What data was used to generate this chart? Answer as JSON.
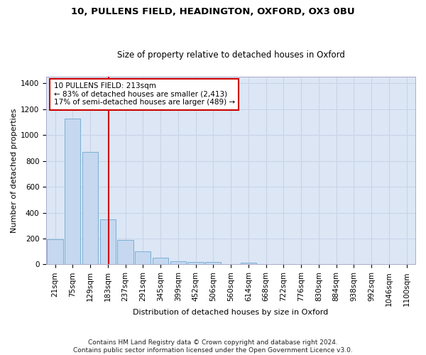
{
  "title1": "10, PULLENS FIELD, HEADINGTON, OXFORD, OX3 0BU",
  "title2": "Size of property relative to detached houses in Oxford",
  "xlabel": "Distribution of detached houses by size in Oxford",
  "ylabel": "Number of detached properties",
  "footer": "Contains HM Land Registry data © Crown copyright and database right 2024.\nContains public sector information licensed under the Open Government Licence v3.0.",
  "categories": [
    "21sqm",
    "75sqm",
    "129sqm",
    "183sqm",
    "237sqm",
    "291sqm",
    "345sqm",
    "399sqm",
    "452sqm",
    "506sqm",
    "560sqm",
    "614sqm",
    "668sqm",
    "722sqm",
    "776sqm",
    "830sqm",
    "884sqm",
    "938sqm",
    "992sqm",
    "1046sqm",
    "1100sqm"
  ],
  "values": [
    195,
    1130,
    870,
    350,
    190,
    100,
    50,
    25,
    20,
    20,
    0,
    15,
    0,
    0,
    0,
    0,
    0,
    0,
    0,
    0,
    0
  ],
  "bar_color": "#c5d8f0",
  "bar_edge_color": "#7bafd4",
  "grid_color": "#c8d4e8",
  "background_color": "#dce6f5",
  "fig_background": "#ffffff",
  "marker_color": "#cc0000",
  "annotation_text": "10 PULLENS FIELD: 213sqm\n← 83% of detached houses are smaller (2,413)\n17% of semi-detached houses are larger (489) →",
  "annotation_box_color": "#ffffff",
  "annotation_border_color": "#cc0000",
  "ylim": [
    0,
    1450
  ],
  "yticks": [
    0,
    200,
    400,
    600,
    800,
    1000,
    1200,
    1400
  ],
  "title1_fontsize": 9.5,
  "title2_fontsize": 8.5,
  "axis_label_fontsize": 8,
  "tick_fontsize": 7.5,
  "annot_fontsize": 7.5,
  "footer_fontsize": 6.5
}
